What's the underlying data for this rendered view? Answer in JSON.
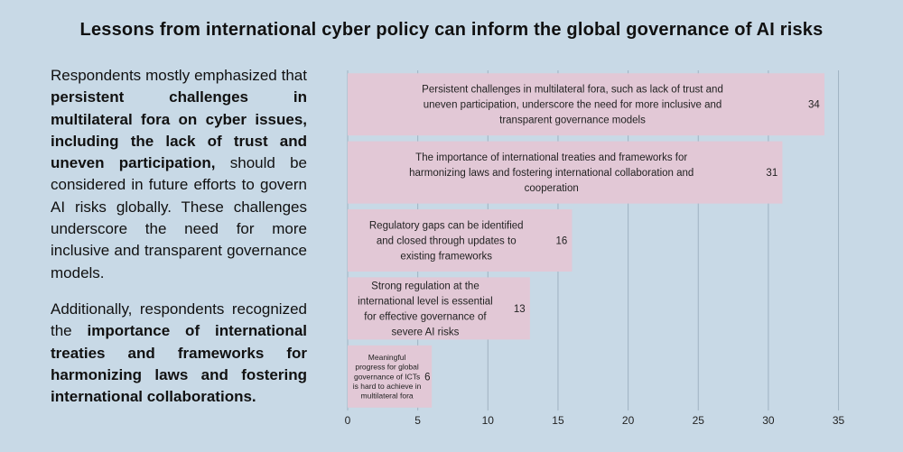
{
  "title": "Lessons from international cyber policy can inform the global governance of  AI risks",
  "text": {
    "p1_a": "Respondents mostly emphasized that ",
    "p1_b": "persistent challenges in multilateral fora on cyber issues, including the lack of trust and uneven participation,",
    "p1_c": " should be considered in future efforts to govern AI risks globally. These challenges underscore the need for more inclusive and transparent governance models.",
    "p2_a": "Additionally, respondents recognized the ",
    "p2_b": "importance of international treaties and frameworks for harmonizing laws and fostering international collaborations."
  },
  "colors": {
    "bar": "#e2c8d6",
    "grid": "#9fb2c2",
    "background": "#c8d9e6"
  },
  "chart_data": {
    "type": "bar",
    "orientation": "horizontal",
    "categories": [
      [
        "Persistent challenges in multilateral fora, such as lack of trust and",
        "uneven participation, underscore the need for more inclusive and",
        "transparent governance models"
      ],
      [
        "The importance of international treaties and frameworks for",
        "harmonizing laws and fostering international collaboration and",
        "cooperation"
      ],
      [
        "Regulatory gaps can be identified",
        "and closed through updates to",
        "existing frameworks"
      ],
      [
        "Strong regulation at the",
        "international level is essential",
        "for effective governance of",
        "severe AI risks"
      ],
      [
        "Meaningful",
        "progress for global",
        "governance of ICTs",
        "is hard to achieve in",
        "multilateral fora"
      ]
    ],
    "values": [
      34,
      31,
      16,
      13,
      6
    ],
    "xlim": [
      0,
      35
    ],
    "xticks": [
      0,
      5,
      10,
      15,
      20,
      25,
      30,
      35
    ],
    "grid": true
  }
}
